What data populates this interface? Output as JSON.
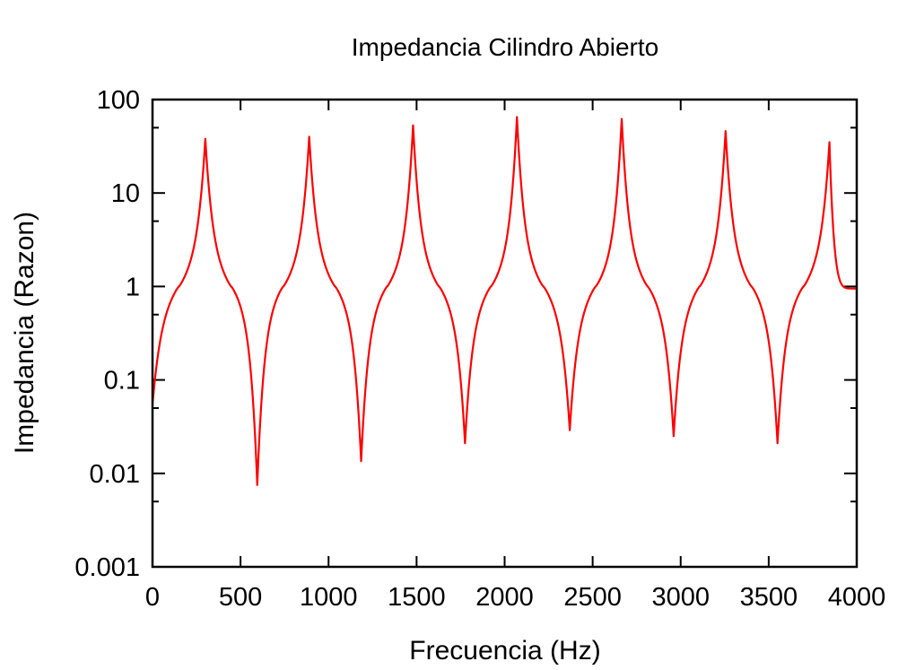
{
  "chart_data": {
    "type": "line",
    "title": "Impedancia Cilindro Abierto",
    "xlabel": "Frecuencia (Hz)",
    "ylabel": "Impedancia (Razon)",
    "xlim": [
      0,
      4000
    ],
    "ylim": [
      0.001,
      100
    ],
    "yscale": "log",
    "grid": false,
    "x_ticks": [
      0,
      500,
      1000,
      1500,
      2000,
      2500,
      3000,
      3500,
      4000
    ],
    "x_tick_labels": [
      "0",
      "500",
      "1000",
      "1500",
      "2000",
      "2500",
      "3000",
      "3500",
      "4000"
    ],
    "y_ticks": [
      0.001,
      0.01,
      0.1,
      1,
      10,
      100
    ],
    "y_tick_labels": [
      "0.001",
      "0.01",
      "0.1",
      "1",
      "10",
      "100"
    ],
    "series": [
      {
        "color": "#ff0000",
        "peaks": [
          {
            "x": 300,
            "y": 38
          },
          {
            "x": 890,
            "y": 40
          },
          {
            "x": 1480,
            "y": 53
          },
          {
            "x": 2070,
            "y": 65
          },
          {
            "x": 2665,
            "y": 62
          },
          {
            "x": 3255,
            "y": 46
          },
          {
            "x": 3845,
            "y": 35
          }
        ],
        "troughs": [
          {
            "x": 0,
            "y": 0.055
          },
          {
            "x": 595,
            "y": 0.0075
          },
          {
            "x": 1185,
            "y": 0.0135
          },
          {
            "x": 1775,
            "y": 0.021
          },
          {
            "x": 2370,
            "y": 0.029
          },
          {
            "x": 2960,
            "y": 0.025
          },
          {
            "x": 3550,
            "y": 0.021
          }
        ],
        "end": {
          "x": 4000,
          "y": 0.95
        }
      }
    ]
  }
}
